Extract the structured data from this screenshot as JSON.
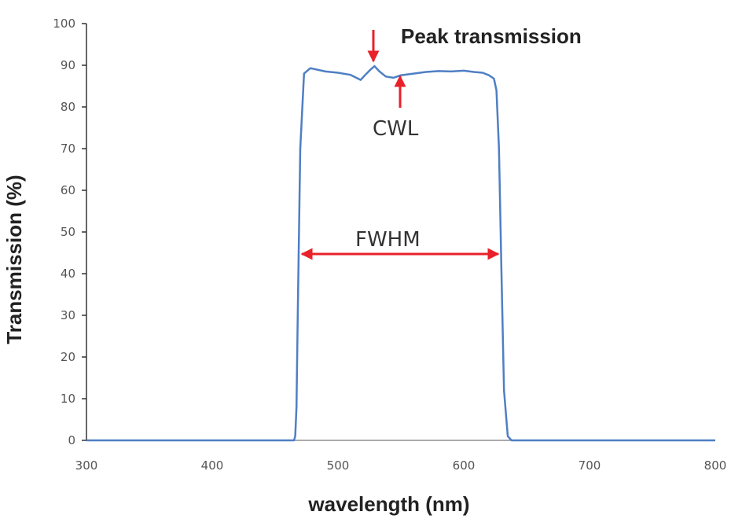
{
  "chart_data": {
    "type": "line",
    "title": "",
    "xlabel": "wavelength (nm)",
    "ylabel": "Transmission (%)",
    "xlim": [
      300,
      800
    ],
    "ylim": [
      0,
      100
    ],
    "x_ticks": [
      "300",
      "400",
      "500",
      "600",
      "700",
      "800"
    ],
    "y_ticks": [
      "0",
      "10",
      "20",
      "30",
      "40",
      "50",
      "60",
      "70",
      "80",
      "90",
      "100"
    ],
    "grid": false,
    "legend": "none",
    "series": [
      {
        "color": "#4f7fc4",
        "x": [
          300,
          465,
          466,
          467,
          468,
          470,
          473,
          478,
          490,
          500,
          510,
          518,
          522,
          526,
          529,
          533,
          538,
          544,
          550,
          560,
          570,
          580,
          590,
          600,
          608,
          615,
          620,
          624,
          626,
          628,
          630,
          632,
          635,
          638,
          800
        ],
        "y": [
          0,
          0,
          1,
          8,
          30,
          70,
          88,
          89.3,
          88.5,
          88.2,
          87.7,
          86.5,
          87.8,
          89.0,
          89.8,
          88.5,
          87.3,
          87.0,
          87.6,
          88.0,
          88.4,
          88.6,
          88.5,
          88.7,
          88.4,
          88.2,
          87.6,
          86.8,
          84,
          70,
          40,
          12,
          1,
          0,
          0
        ]
      }
    ],
    "annotations": {
      "peak_label": "Peak transmission",
      "cwl_label": "CWL",
      "fwhm_label": "FWHM",
      "annotation_color": "#e8212a"
    }
  }
}
